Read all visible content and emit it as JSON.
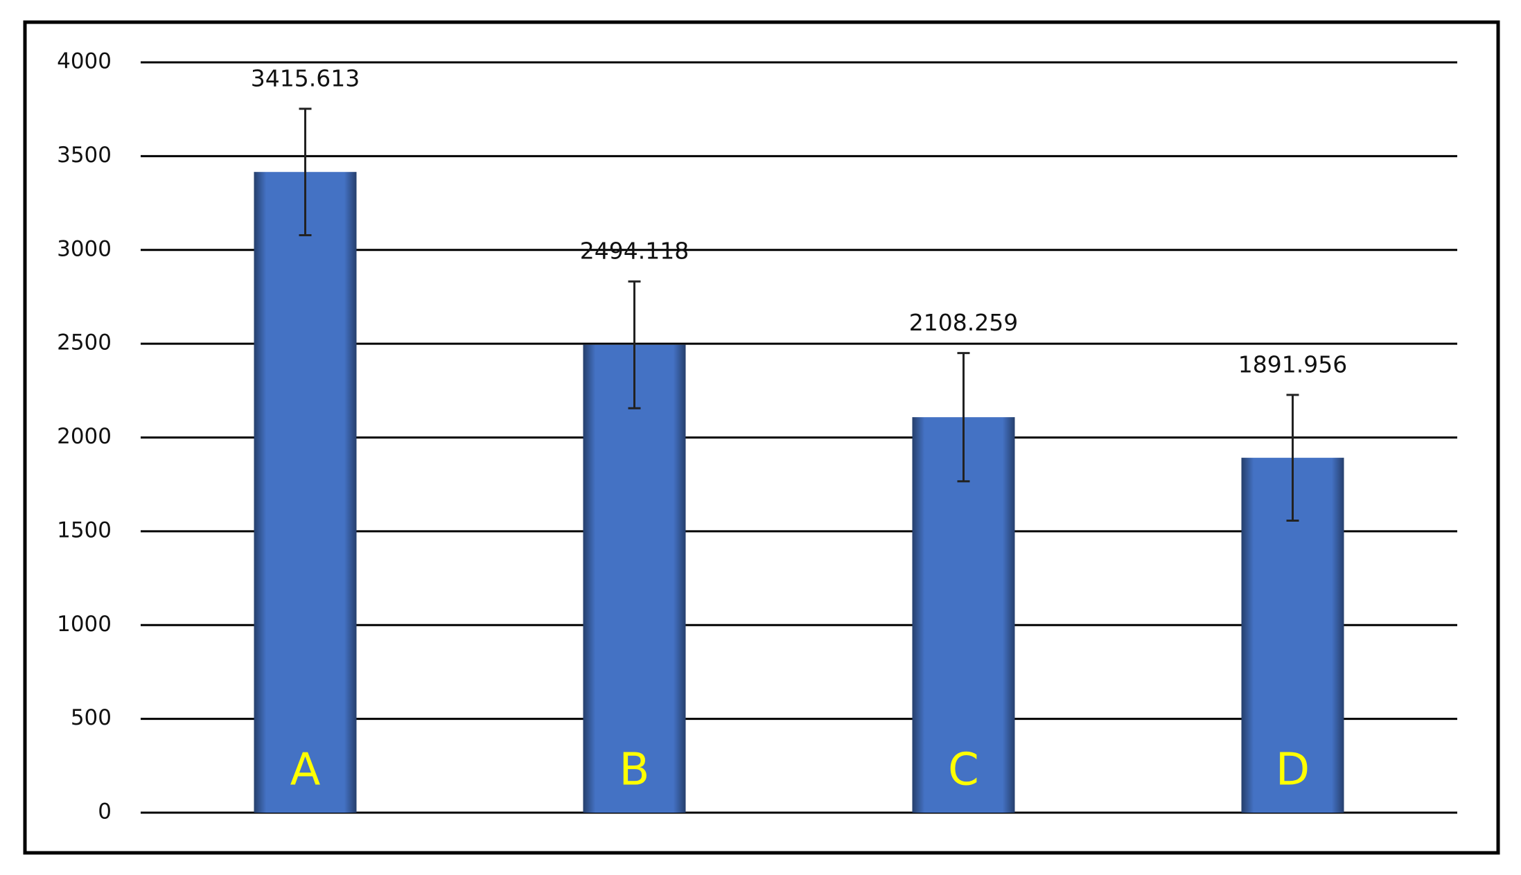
{
  "chart_data": {
    "type": "bar",
    "categories": [
      "A",
      "B",
      "C",
      "D"
    ],
    "values": [
      3415.613,
      2494.118,
      2108.259,
      1891.956
    ],
    "errors": [
      337,
      338,
      342,
      335
    ],
    "color": "#4472c4",
    "ylim": [
      0,
      4000
    ],
    "yticks": [
      0,
      500,
      1000,
      1500,
      2000,
      2500,
      3000,
      3500,
      4000
    ],
    "grid": true
  }
}
